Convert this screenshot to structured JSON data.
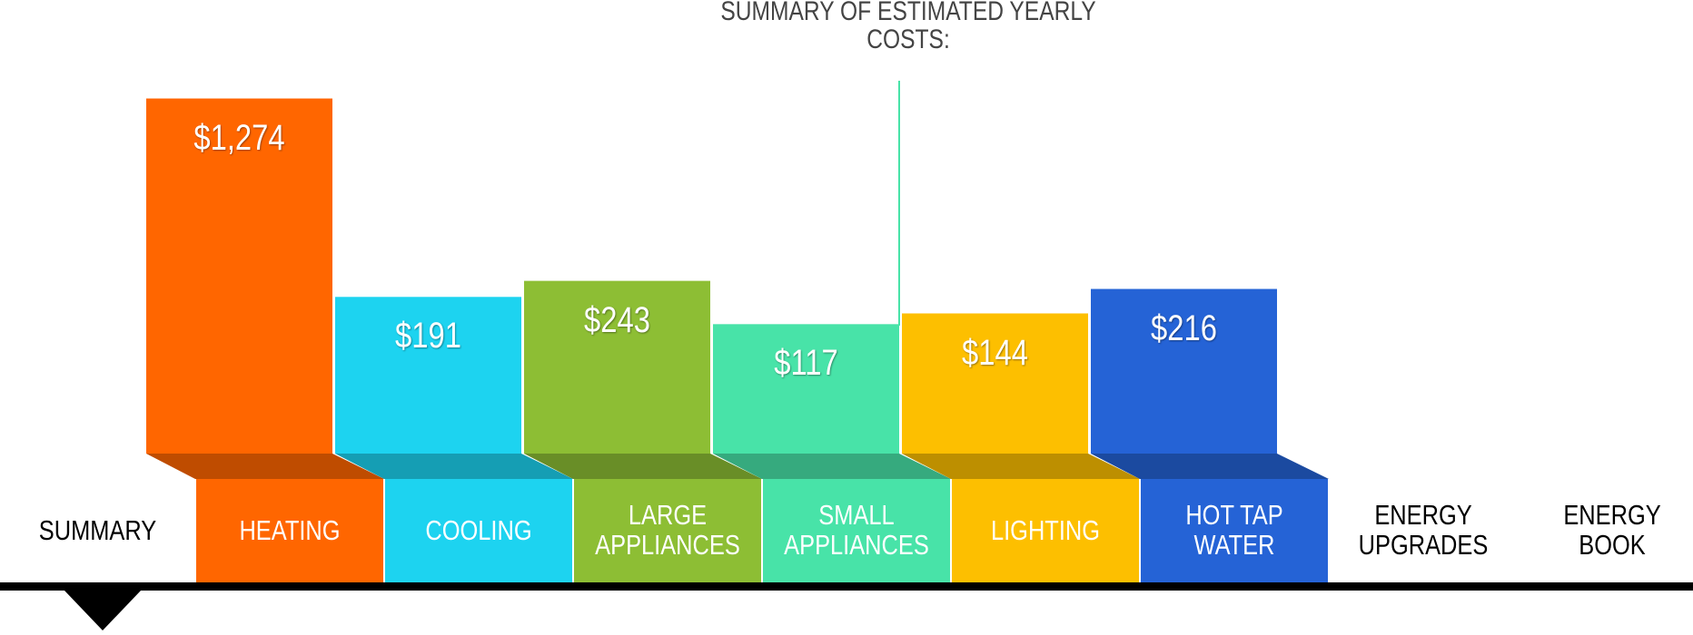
{
  "chart_data": {
    "type": "bar",
    "title": "SUMMARY OF ESTIMATED YEARLY COSTS:",
    "categories": [
      "HEATING",
      "COOLING",
      "LARGE APPLIANCES",
      "SMALL APPLIANCES",
      "LIGHTING",
      "HOT TAP WATER"
    ],
    "values": [
      1274,
      191,
      243,
      117,
      144,
      216
    ],
    "value_labels": [
      "$1,274",
      "$191",
      "$243",
      "$117",
      "$144",
      "$216"
    ],
    "colors": [
      "#ff6600",
      "#1dd3f0",
      "#8dbe34",
      "#48e3a8",
      "#fdbf00",
      "#2563d6"
    ]
  },
  "nav": {
    "first_tab": "SUMMARY",
    "last_tabs": [
      "ENERGY UPGRADES",
      "ENERGY BOOK"
    ]
  }
}
